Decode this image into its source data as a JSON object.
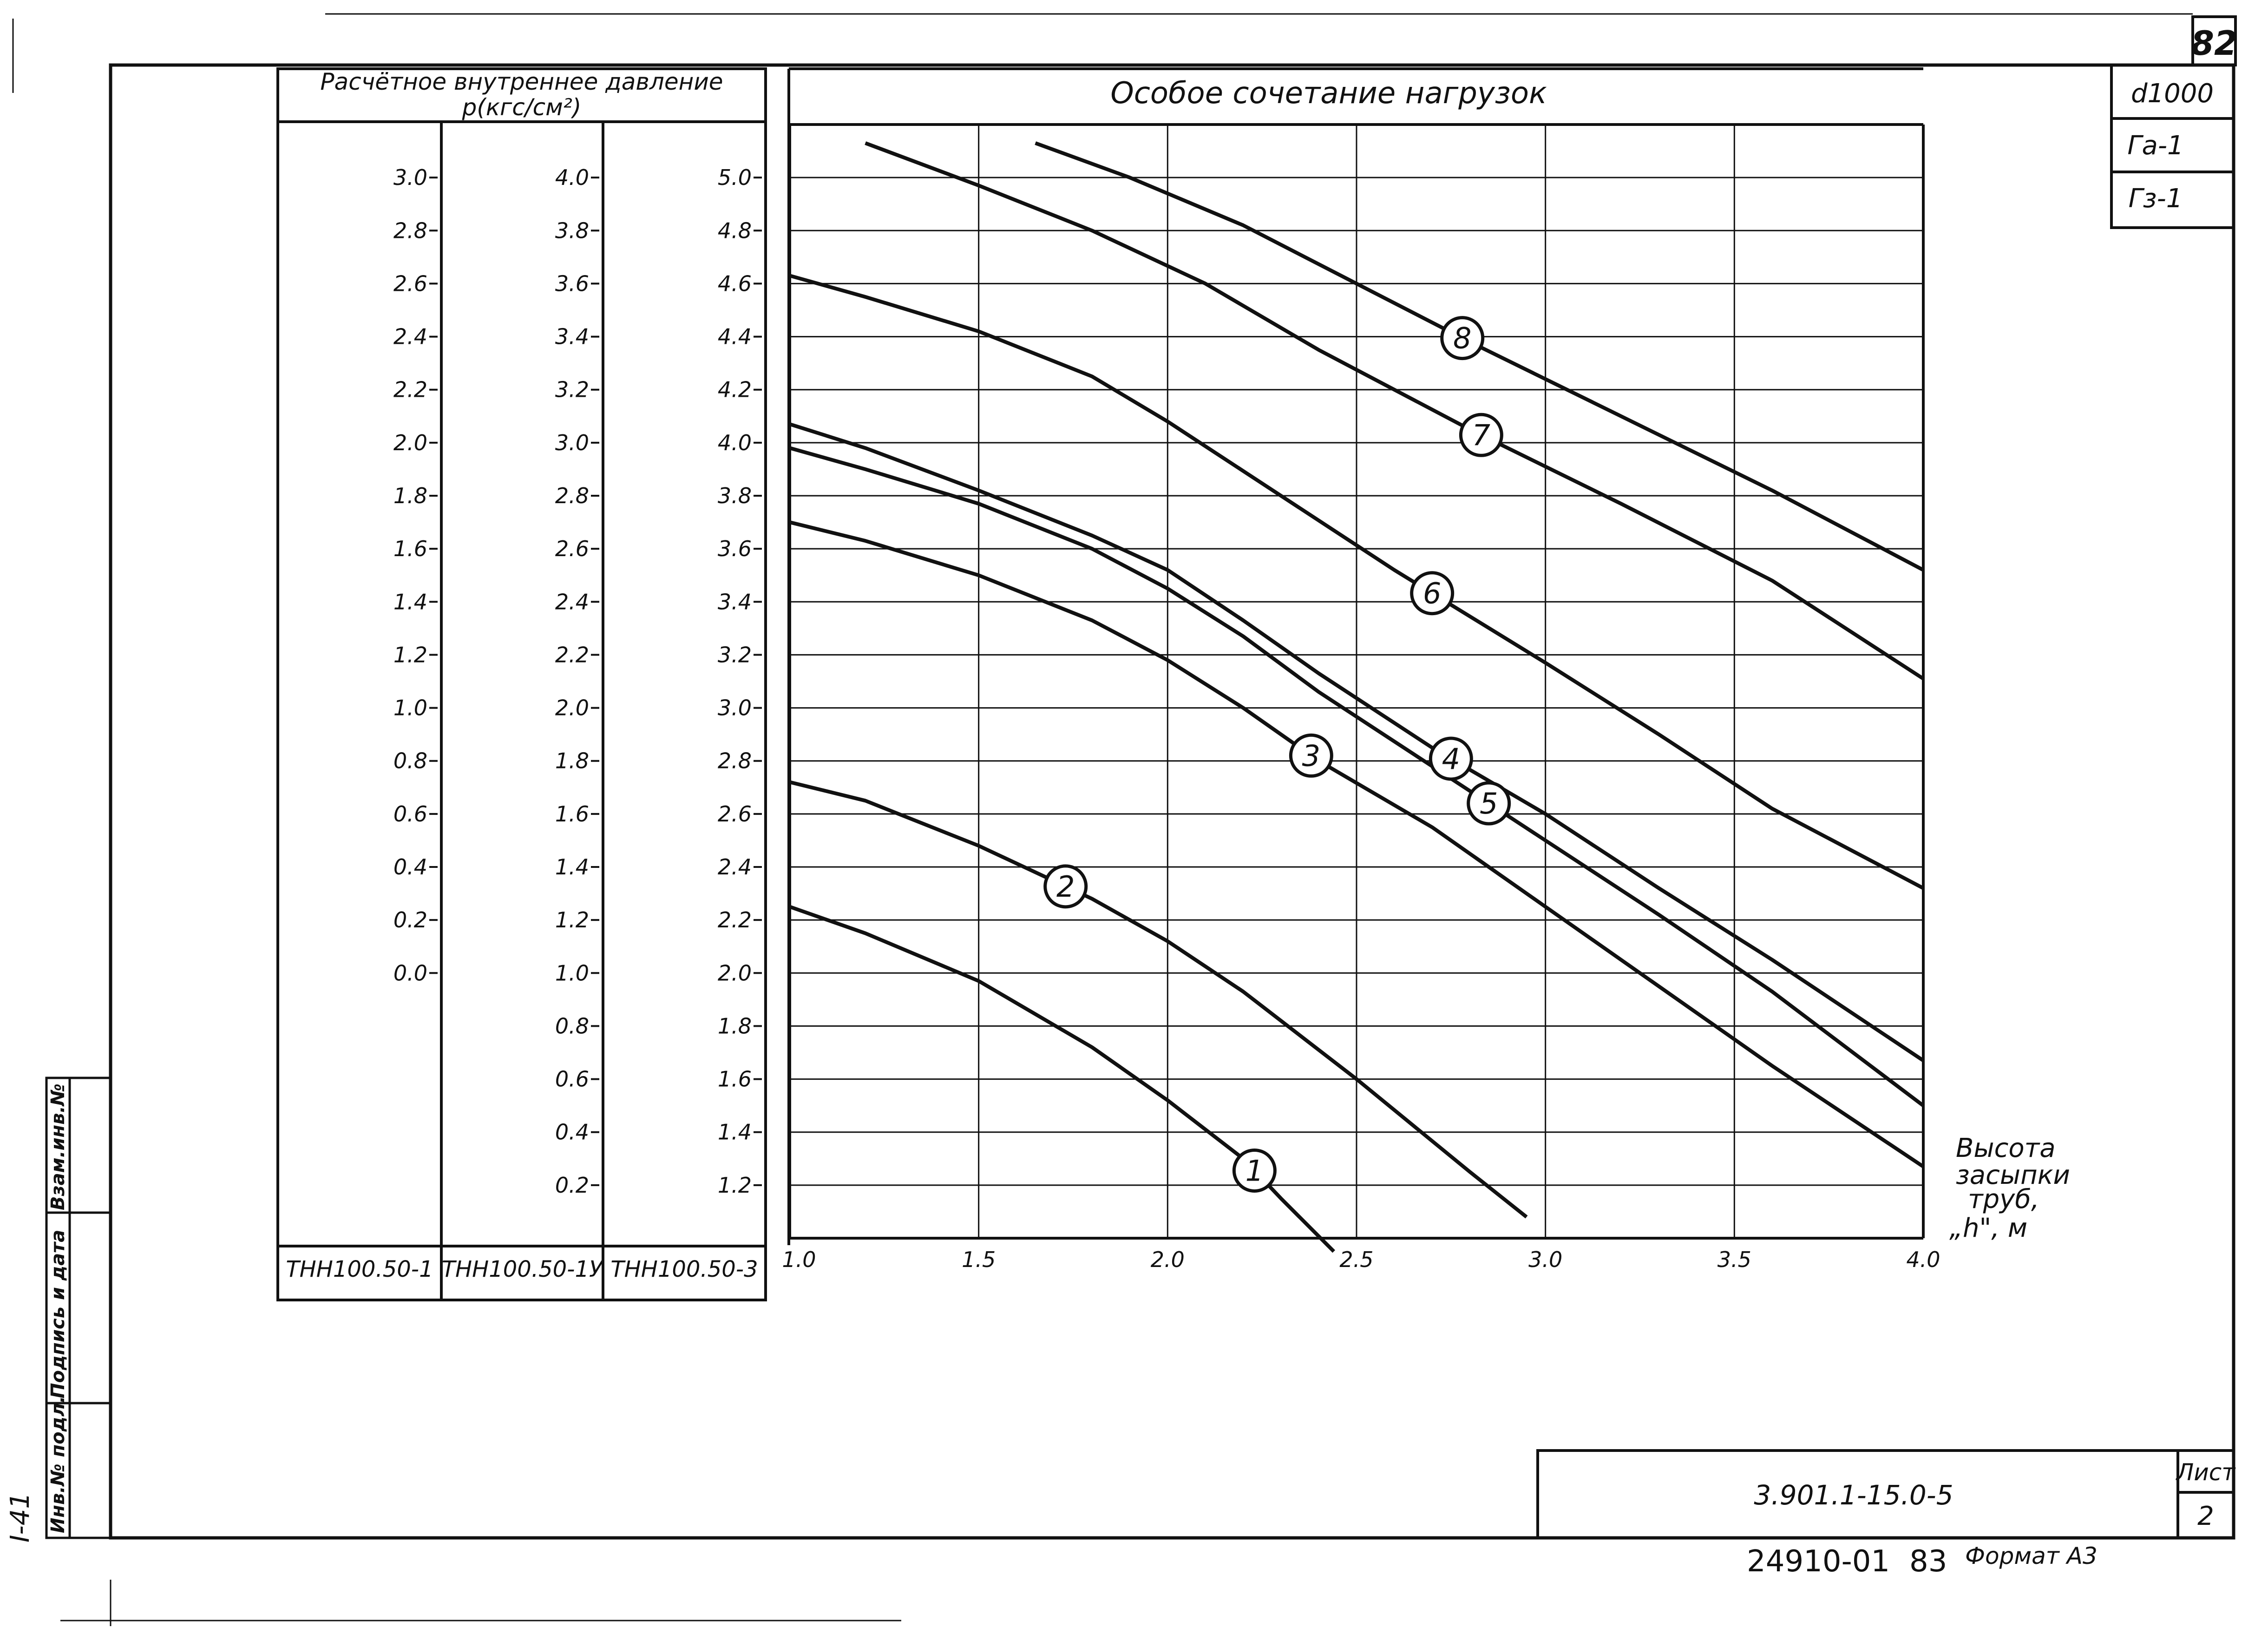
{
  "sheet_number": "82",
  "stamps": [
    "d1000",
    "Га-1",
    "Гз-1"
  ],
  "pressure_header": {
    "line1": "Расчётное внутреннее давление",
    "line2": "p(кгс/см²)"
  },
  "chart_title": "Особое сочетание нагрузок",
  "axis_note": [
    "Высота",
    "засыпки",
    "труб,",
    "„h\", м"
  ],
  "pressure_columns": [
    {
      "name": "ТНН100.50-1",
      "ticks": [
        "3.0",
        "2.8",
        "2.6",
        "2.4",
        "2.2",
        "2.0",
        "1.8",
        "1.6",
        "1.4",
        "1.2",
        "1.0",
        "0.8",
        "0.6",
        "0.4",
        "0.2",
        "0.0"
      ]
    },
    {
      "name": "ТНН100.50-1У",
      "ticks": [
        "4.0",
        "3.8",
        "3.6",
        "3.4",
        "3.2",
        "3.0",
        "2.8",
        "2.6",
        "2.4",
        "2.2",
        "2.0",
        "1.8",
        "1.6",
        "1.4",
        "1.2",
        "1.0",
        "0.8",
        "0.6",
        "0.4",
        "0.2"
      ]
    },
    {
      "name": "ТНН100.50-3",
      "ticks": [
        "5.0",
        "4.8",
        "4.6",
        "4.4",
        "4.2",
        "4.0",
        "3.8",
        "3.6",
        "3.4",
        "3.2",
        "3.0",
        "2.8",
        "2.6",
        "2.4",
        "2.2",
        "2.0",
        "1.8",
        "1.6",
        "1.4",
        "1.2"
      ]
    }
  ],
  "side_stamp": [
    "Взам.инв.№",
    "Подпись и дата",
    "Инв.№ подл."
  ],
  "side_code": "I-41",
  "doc_code": "3.901.1-15.0-5",
  "sheet_label": "Лист",
  "sheet_value": "2",
  "footer_code": "24910-01",
  "footer_num": "83",
  "footer_format": "Формат А3",
  "chart_data": {
    "type": "line",
    "title": "Особое сочетание нагрузок",
    "xlabel": "Высота засыпки труб, „h\", м",
    "ylabel": "Расчётное внутреннее давление p(кгс/см²)",
    "x_ticks": [
      "1.0",
      "1.5",
      "2.0",
      "2.5",
      "3.0",
      "3.5",
      "4.0"
    ],
    "xlim": [
      1.0,
      4.0
    ],
    "ylim": [
      1.0,
      5.2
    ],
    "y_axis_reference": "ТНН100.50-3",
    "grid": true,
    "series": [
      {
        "name": "1",
        "x": [
          1.0,
          1.2,
          1.5,
          1.8,
          2.0,
          2.2,
          2.3,
          2.44
        ],
        "y": [
          2.25,
          2.15,
          1.97,
          1.72,
          1.52,
          1.3,
          1.15,
          0.95
        ]
      },
      {
        "name": "2",
        "x": [
          1.0,
          1.2,
          1.5,
          1.8,
          2.0,
          2.2,
          2.5,
          2.8,
          2.95
        ],
        "y": [
          2.72,
          2.65,
          2.48,
          2.28,
          2.12,
          1.93,
          1.6,
          1.25,
          1.08
        ]
      },
      {
        "name": "3",
        "x": [
          1.0,
          1.2,
          1.5,
          1.8,
          2.0,
          2.2,
          2.4,
          2.7,
          3.0,
          3.3,
          3.6,
          4.0
        ],
        "y": [
          3.7,
          3.63,
          3.5,
          3.33,
          3.18,
          3.0,
          2.8,
          2.55,
          2.25,
          1.95,
          1.65,
          1.27
        ]
      },
      {
        "name": "4",
        "x": [
          1.0,
          1.2,
          1.5,
          1.8,
          2.0,
          2.2,
          2.4,
          2.7,
          3.0,
          3.3,
          3.6,
          4.0
        ],
        "y": [
          4.07,
          3.98,
          3.82,
          3.65,
          3.52,
          3.33,
          3.13,
          2.85,
          2.6,
          2.32,
          2.05,
          1.67
        ]
      },
      {
        "name": "5",
        "x": [
          1.0,
          1.2,
          1.5,
          1.8,
          2.0,
          2.2,
          2.4,
          2.7,
          3.0,
          3.3,
          3.6,
          4.0
        ],
        "y": [
          3.98,
          3.9,
          3.77,
          3.6,
          3.45,
          3.27,
          3.06,
          2.78,
          2.5,
          2.22,
          1.93,
          1.5
        ]
      },
      {
        "name": "6",
        "x": [
          1.0,
          1.2,
          1.5,
          1.8,
          2.0,
          2.3,
          2.6,
          3.0,
          3.3,
          3.6,
          4.0
        ],
        "y": [
          4.63,
          4.55,
          4.42,
          4.25,
          4.08,
          3.8,
          3.52,
          3.17,
          2.9,
          2.62,
          2.32
        ]
      },
      {
        "name": "7",
        "x": [
          1.2,
          1.5,
          1.8,
          2.1,
          2.4,
          2.8,
          3.2,
          3.6,
          4.0
        ],
        "y": [
          5.13,
          4.97,
          4.8,
          4.6,
          4.35,
          4.05,
          3.77,
          3.48,
          3.11
        ]
      },
      {
        "name": "8",
        "x": [
          1.65,
          1.9,
          2.2,
          2.5,
          2.8,
          3.2,
          3.6,
          4.0
        ],
        "y": [
          5.13,
          5.0,
          4.82,
          4.6,
          4.38,
          4.1,
          3.82,
          3.52
        ]
      }
    ]
  },
  "colors": {
    "ink": "#111111",
    "paper": "#ffffff"
  }
}
